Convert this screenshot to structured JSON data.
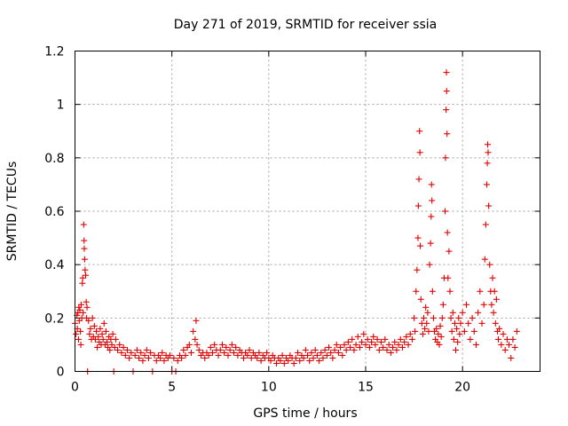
{
  "chart_data": {
    "type": "scatter",
    "title": "Day 271 of 2019, SRMTID for receiver ssia",
    "xlabel": "GPS time / hours",
    "ylabel": "SRMTID / TECUs",
    "xlim": [
      0,
      24
    ],
    "ylim": [
      0,
      1.2
    ],
    "xticks": [
      0,
      5,
      10,
      15,
      20
    ],
    "xtick_labels": [
      "0",
      "5",
      "10",
      "15",
      "20"
    ],
    "yticks": [
      0,
      0.2,
      0.4,
      0.6,
      0.8,
      1.0,
      1.2
    ],
    "ytick_labels": [
      "0",
      "0.2",
      "0.4",
      "0.6",
      "0.8",
      "1",
      "1.2"
    ],
    "grid": true,
    "marker": "plus",
    "series": [
      {
        "name": "SRMTID",
        "color": "#e00000",
        "points": [
          [
            0.0,
            0.18
          ],
          [
            0.05,
            0.14
          ],
          [
            0.1,
            0.21
          ],
          [
            0.12,
            0.16
          ],
          [
            0.15,
            0.22
          ],
          [
            0.18,
            0.12
          ],
          [
            0.2,
            0.24
          ],
          [
            0.22,
            0.19
          ],
          [
            0.25,
            0.23
          ],
          [
            0.28,
            0.15
          ],
          [
            0.3,
            0.1
          ],
          [
            0.32,
            0.25
          ],
          [
            0.35,
            0.2
          ],
          [
            0.38,
            0.33
          ],
          [
            0.4,
            0.35
          ],
          [
            0.42,
            0.22
          ],
          [
            0.45,
            0.55
          ],
          [
            0.47,
            0.49
          ],
          [
            0.48,
            0.46
          ],
          [
            0.5,
            0.42
          ],
          [
            0.52,
            0.38
          ],
          [
            0.55,
            0.36
          ],
          [
            0.58,
            0.26
          ],
          [
            0.6,
            0.2
          ],
          [
            0.62,
            0.24
          ],
          [
            0.65,
            0.0
          ],
          [
            0.7,
            0.19
          ],
          [
            0.75,
            0.14
          ],
          [
            0.8,
            0.16
          ],
          [
            0.85,
            0.12
          ],
          [
            0.9,
            0.2
          ],
          [
            0.95,
            0.13
          ],
          [
            1.0,
            0.17
          ],
          [
            1.05,
            0.12
          ],
          [
            1.1,
            0.15
          ],
          [
            1.15,
            0.09
          ],
          [
            1.2,
            0.13
          ],
          [
            1.25,
            0.11
          ],
          [
            1.3,
            0.16
          ],
          [
            1.35,
            0.1
          ],
          [
            1.4,
            0.14
          ],
          [
            1.45,
            0.12
          ],
          [
            1.5,
            0.18
          ],
          [
            1.55,
            0.1
          ],
          [
            1.6,
            0.15
          ],
          [
            1.65,
            0.11
          ],
          [
            1.7,
            0.09
          ],
          [
            1.75,
            0.13
          ],
          [
            1.8,
            0.08
          ],
          [
            1.85,
            0.12
          ],
          [
            1.9,
            0.1
          ],
          [
            1.95,
            0.14
          ],
          [
            2.0,
            0.0
          ],
          [
            2.05,
            0.09
          ],
          [
            2.1,
            0.12
          ],
          [
            2.2,
            0.08
          ],
          [
            2.3,
            0.1
          ],
          [
            2.4,
            0.07
          ],
          [
            2.5,
            0.09
          ],
          [
            2.6,
            0.06
          ],
          [
            2.7,
            0.08
          ],
          [
            2.8,
            0.05
          ],
          [
            2.9,
            0.07
          ],
          [
            3.0,
            0.0
          ],
          [
            3.1,
            0.06
          ],
          [
            3.2,
            0.08
          ],
          [
            3.3,
            0.05
          ],
          [
            3.4,
            0.07
          ],
          [
            3.5,
            0.04
          ],
          [
            3.6,
            0.06
          ],
          [
            3.7,
            0.08
          ],
          [
            3.8,
            0.05
          ],
          [
            3.9,
            0.07
          ],
          [
            4.0,
            0.0
          ],
          [
            4.1,
            0.06
          ],
          [
            4.2,
            0.04
          ],
          [
            4.3,
            0.06
          ],
          [
            4.4,
            0.05
          ],
          [
            4.5,
            0.07
          ],
          [
            4.6,
            0.04
          ],
          [
            4.7,
            0.06
          ],
          [
            4.8,
            0.05
          ],
          [
            4.9,
            0.06
          ],
          [
            5.0,
            0.0
          ],
          [
            5.1,
            0.05
          ],
          [
            5.2,
            0.0
          ],
          [
            5.3,
            0.04
          ],
          [
            5.4,
            0.06
          ],
          [
            5.5,
            0.05
          ],
          [
            5.6,
            0.08
          ],
          [
            5.7,
            0.06
          ],
          [
            5.8,
            0.09
          ],
          [
            5.9,
            0.1
          ],
          [
            6.0,
            0.07
          ],
          [
            6.1,
            0.15
          ],
          [
            6.2,
            0.12
          ],
          [
            6.25,
            0.19
          ],
          [
            6.3,
            0.1
          ],
          [
            6.4,
            0.08
          ],
          [
            6.5,
            0.06
          ],
          [
            6.6,
            0.07
          ],
          [
            6.7,
            0.05
          ],
          [
            6.8,
            0.07
          ],
          [
            6.9,
            0.06
          ],
          [
            7.0,
            0.09
          ],
          [
            7.1,
            0.07
          ],
          [
            7.2,
            0.1
          ],
          [
            7.3,
            0.08
          ],
          [
            7.4,
            0.06
          ],
          [
            7.5,
            0.08
          ],
          [
            7.6,
            0.1
          ],
          [
            7.7,
            0.07
          ],
          [
            7.8,
            0.09
          ],
          [
            7.9,
            0.06
          ],
          [
            8.0,
            0.08
          ],
          [
            8.1,
            0.1
          ],
          [
            8.2,
            0.07
          ],
          [
            8.3,
            0.09
          ],
          [
            8.4,
            0.06
          ],
          [
            8.5,
            0.08
          ],
          [
            8.6,
            0.07
          ],
          [
            8.7,
            0.05
          ],
          [
            8.8,
            0.07
          ],
          [
            8.9,
            0.06
          ],
          [
            9.0,
            0.08
          ],
          [
            9.1,
            0.05
          ],
          [
            9.2,
            0.07
          ],
          [
            9.3,
            0.06
          ],
          [
            9.4,
            0.05
          ],
          [
            9.5,
            0.07
          ],
          [
            9.6,
            0.04
          ],
          [
            9.7,
            0.06
          ],
          [
            9.8,
            0.05
          ],
          [
            9.9,
            0.07
          ],
          [
            10.0,
            0.05
          ],
          [
            10.1,
            0.04
          ],
          [
            10.2,
            0.06
          ],
          [
            10.3,
            0.05
          ],
          [
            10.4,
            0.03
          ],
          [
            10.5,
            0.05
          ],
          [
            10.6,
            0.04
          ],
          [
            10.7,
            0.06
          ],
          [
            10.8,
            0.03
          ],
          [
            10.9,
            0.05
          ],
          [
            11.0,
            0.04
          ],
          [
            11.1,
            0.06
          ],
          [
            11.2,
            0.05
          ],
          [
            11.3,
            0.03
          ],
          [
            11.4,
            0.05
          ],
          [
            11.5,
            0.07
          ],
          [
            11.6,
            0.04
          ],
          [
            11.7,
            0.06
          ],
          [
            11.8,
            0.05
          ],
          [
            11.9,
            0.08
          ],
          [
            12.0,
            0.06
          ],
          [
            12.1,
            0.04
          ],
          [
            12.2,
            0.07
          ],
          [
            12.3,
            0.05
          ],
          [
            12.4,
            0.08
          ],
          [
            12.5,
            0.06
          ],
          [
            12.6,
            0.04
          ],
          [
            12.7,
            0.07
          ],
          [
            12.8,
            0.05
          ],
          [
            12.9,
            0.08
          ],
          [
            13.0,
            0.06
          ],
          [
            13.1,
            0.09
          ],
          [
            13.2,
            0.07
          ],
          [
            13.3,
            0.05
          ],
          [
            13.4,
            0.08
          ],
          [
            13.5,
            0.1
          ],
          [
            13.6,
            0.07
          ],
          [
            13.7,
            0.09
          ],
          [
            13.8,
            0.06
          ],
          [
            13.9,
            0.1
          ],
          [
            14.0,
            0.08
          ],
          [
            14.1,
            0.11
          ],
          [
            14.2,
            0.09
          ],
          [
            14.3,
            0.12
          ],
          [
            14.4,
            0.08
          ],
          [
            14.5,
            0.1
          ],
          [
            14.6,
            0.13
          ],
          [
            14.7,
            0.09
          ],
          [
            14.8,
            0.11
          ],
          [
            14.9,
            0.14
          ],
          [
            15.0,
            0.1
          ],
          [
            15.1,
            0.12
          ],
          [
            15.2,
            0.09
          ],
          [
            15.3,
            0.11
          ],
          [
            15.4,
            0.13
          ],
          [
            15.5,
            0.1
          ],
          [
            15.6,
            0.12
          ],
          [
            15.7,
            0.08
          ],
          [
            15.8,
            0.11
          ],
          [
            15.9,
            0.09
          ],
          [
            16.0,
            0.12
          ],
          [
            16.1,
            0.08
          ],
          [
            16.2,
            0.1
          ],
          [
            16.3,
            0.07
          ],
          [
            16.4,
            0.09
          ],
          [
            16.5,
            0.11
          ],
          [
            16.6,
            0.08
          ],
          [
            16.7,
            0.1
          ],
          [
            16.8,
            0.12
          ],
          [
            16.9,
            0.09
          ],
          [
            17.0,
            0.11
          ],
          [
            17.1,
            0.13
          ],
          [
            17.2,
            0.1
          ],
          [
            17.3,
            0.14
          ],
          [
            17.4,
            0.12
          ],
          [
            17.5,
            0.2
          ],
          [
            17.55,
            0.15
          ],
          [
            17.6,
            0.3
          ],
          [
            17.65,
            0.38
          ],
          [
            17.7,
            0.5
          ],
          [
            17.72,
            0.62
          ],
          [
            17.75,
            0.72
          ],
          [
            17.78,
            0.9
          ],
          [
            17.8,
            0.82
          ],
          [
            17.82,
            0.47
          ],
          [
            17.85,
            0.27
          ],
          [
            17.9,
            0.18
          ],
          [
            17.95,
            0.14
          ],
          [
            18.0,
            0.2
          ],
          [
            18.05,
            0.16
          ],
          [
            18.1,
            0.24
          ],
          [
            18.15,
            0.18
          ],
          [
            18.2,
            0.22
          ],
          [
            18.25,
            0.15
          ],
          [
            18.3,
            0.4
          ],
          [
            18.35,
            0.48
          ],
          [
            18.38,
            0.58
          ],
          [
            18.4,
            0.7
          ],
          [
            18.42,
            0.64
          ],
          [
            18.45,
            0.3
          ],
          [
            18.5,
            0.2
          ],
          [
            18.55,
            0.15
          ],
          [
            18.6,
            0.12
          ],
          [
            18.65,
            0.16
          ],
          [
            18.7,
            0.11
          ],
          [
            18.75,
            0.14
          ],
          [
            18.8,
            0.1
          ],
          [
            18.85,
            0.17
          ],
          [
            18.9,
            0.13
          ],
          [
            18.95,
            0.2
          ],
          [
            19.0,
            0.25
          ],
          [
            19.05,
            0.35
          ],
          [
            19.1,
            0.6
          ],
          [
            19.12,
            0.8
          ],
          [
            19.15,
            0.98
          ],
          [
            19.17,
            1.12
          ],
          [
            19.18,
            1.05
          ],
          [
            19.2,
            0.89
          ],
          [
            19.22,
            0.52
          ],
          [
            19.25,
            0.35
          ],
          [
            19.3,
            0.45
          ],
          [
            19.35,
            0.3
          ],
          [
            19.4,
            0.2
          ],
          [
            19.45,
            0.15
          ],
          [
            19.5,
            0.22
          ],
          [
            19.55,
            0.12
          ],
          [
            19.6,
            0.18
          ],
          [
            19.65,
            0.08
          ],
          [
            19.7,
            0.16
          ],
          [
            19.75,
            0.11
          ],
          [
            19.8,
            0.2
          ],
          [
            19.85,
            0.14
          ],
          [
            19.9,
            0.18
          ],
          [
            20.0,
            0.22
          ],
          [
            20.1,
            0.15
          ],
          [
            20.2,
            0.25
          ],
          [
            20.3,
            0.18
          ],
          [
            20.4,
            0.12
          ],
          [
            20.5,
            0.2
          ],
          [
            20.6,
            0.15
          ],
          [
            20.7,
            0.1
          ],
          [
            20.8,
            0.22
          ],
          [
            20.9,
            0.3
          ],
          [
            21.0,
            0.18
          ],
          [
            21.1,
            0.25
          ],
          [
            21.15,
            0.42
          ],
          [
            21.2,
            0.55
          ],
          [
            21.25,
            0.7
          ],
          [
            21.28,
            0.78
          ],
          [
            21.3,
            0.85
          ],
          [
            21.32,
            0.82
          ],
          [
            21.35,
            0.62
          ],
          [
            21.4,
            0.4
          ],
          [
            21.45,
            0.3
          ],
          [
            21.5,
            0.25
          ],
          [
            21.55,
            0.35
          ],
          [
            21.6,
            0.22
          ],
          [
            21.65,
            0.3
          ],
          [
            21.7,
            0.18
          ],
          [
            21.75,
            0.27
          ],
          [
            21.8,
            0.15
          ],
          [
            21.85,
            0.12
          ],
          [
            21.9,
            0.16
          ],
          [
            22.0,
            0.1
          ],
          [
            22.1,
            0.14
          ],
          [
            22.2,
            0.08
          ],
          [
            22.3,
            0.12
          ],
          [
            22.4,
            0.1
          ],
          [
            22.5,
            0.05
          ],
          [
            22.6,
            0.12
          ],
          [
            22.7,
            0.09
          ],
          [
            22.8,
            0.15
          ]
        ]
      }
    ]
  }
}
